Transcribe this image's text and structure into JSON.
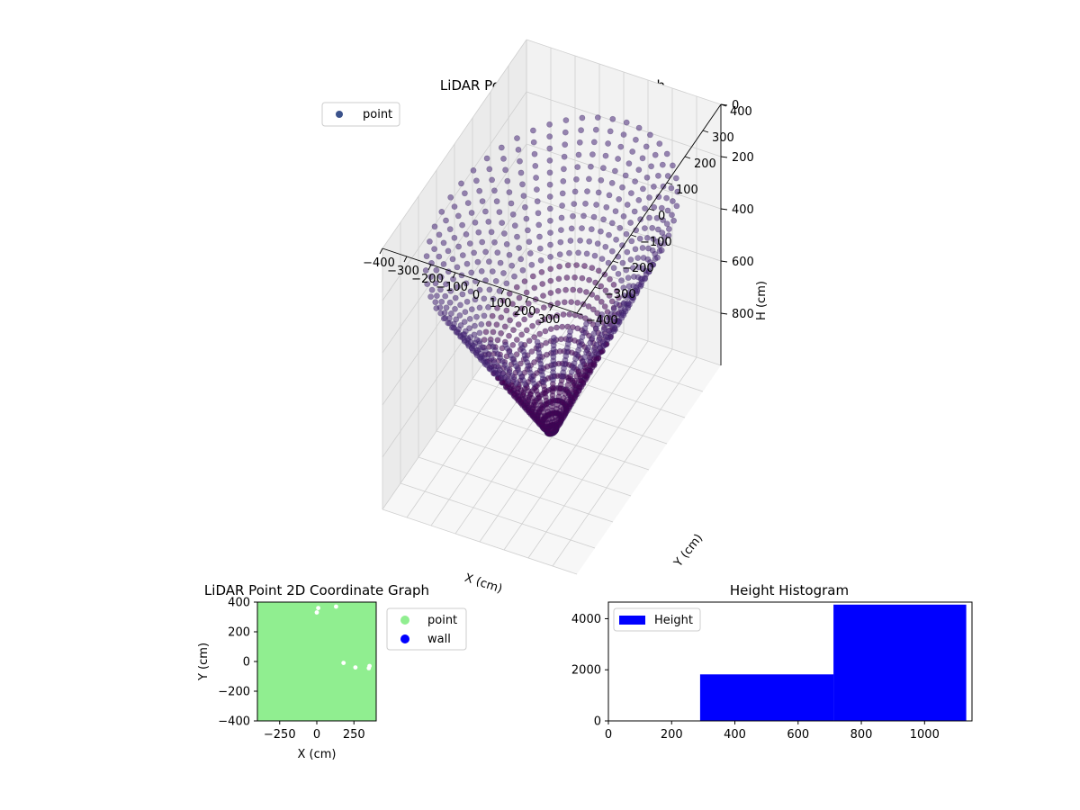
{
  "chart_data": [
    {
      "type": "scatter",
      "projection": "3d",
      "title": "LiDAR Point 3D Coordinate Graph",
      "xlabel": "X (cm)",
      "ylabel": "Y (cm)",
      "zlabel": "H (cm)",
      "xlim": [
        -400,
        400
      ],
      "ylim": [
        -400,
        400
      ],
      "zlim": [
        0,
        1000
      ],
      "z_inverted": true,
      "x_ticks": [
        -400,
        -300,
        -200,
        -100,
        0,
        100,
        200,
        300
      ],
      "y_ticks": [
        -400,
        -300,
        -200,
        -100,
        0,
        100,
        200,
        300,
        400
      ],
      "z_ticks": [
        0,
        200,
        400,
        600,
        800
      ],
      "grid": true,
      "legend": {
        "position": "upper-left",
        "entries": [
          "point"
        ]
      },
      "colormap": "viridis",
      "series": [
        {
          "name": "point",
          "shape": "bowl of radial scan lines",
          "rays": 48,
          "samples_per_ray": 26,
          "center": [
            0,
            0,
            1000
          ]
        }
      ],
      "colors": {
        "legend_marker": "#3b528b",
        "low": "#440154",
        "mid": "#31688e",
        "high": "#6ece58"
      }
    },
    {
      "type": "scatter",
      "title": "LiDAR Point 2D Coordinate Graph",
      "xlabel": "X (cm)",
      "ylabel": "Y (cm)",
      "xlim": [
        -400,
        400
      ],
      "ylim": [
        -400,
        400
      ],
      "x_ticks": [
        -250,
        0,
        250
      ],
      "y_ticks": [
        -400,
        -200,
        0,
        200,
        400
      ],
      "legend": {
        "position": "right",
        "entries": [
          "point",
          "wall"
        ]
      },
      "series": [
        {
          "name": "point",
          "color": "#90ee90",
          "coverage": "fills square [-400,400] x [-400,400]"
        },
        {
          "name": "wall",
          "color": "#0000ff"
        }
      ],
      "gaps": [
        {
          "x": 0,
          "y": 330
        },
        {
          "x": 10,
          "y": 360
        },
        {
          "x": 130,
          "y": 370
        },
        {
          "x": 260,
          "y": -40
        },
        {
          "x": 350,
          "y": -45
        },
        {
          "x": 355,
          "y": -30
        },
        {
          "x": 180,
          "y": -10
        }
      ]
    },
    {
      "type": "bar",
      "title": "Height Histogram",
      "xlim": [
        0,
        1150
      ],
      "ylim": [
        0,
        4650
      ],
      "x_ticks": [
        0,
        200,
        400,
        600,
        800,
        1000
      ],
      "y_ticks": [
        0,
        2000,
        4000
      ],
      "legend": {
        "position": "upper-left",
        "entries": [
          "Height"
        ]
      },
      "color": "#0000ff",
      "series": [
        {
          "name": "Height",
          "bins": [
            {
              "start": 290,
              "end": 712,
              "count": 1820
            },
            {
              "start": 712,
              "end": 1132,
              "count": 4550
            }
          ]
        }
      ]
    }
  ]
}
